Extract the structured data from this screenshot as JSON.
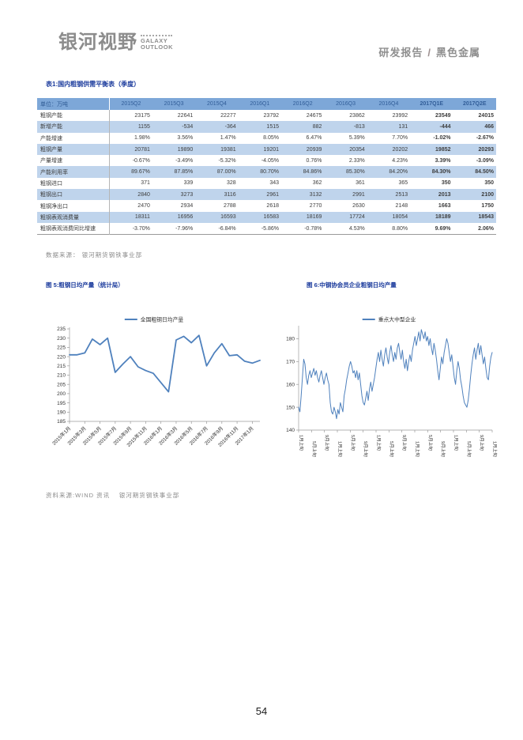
{
  "header": {
    "logo_cn": "银河视野",
    "logo_en_line1": "GALAXY",
    "logo_en_line2": "OUTLOOK",
    "report_type": "研发报告",
    "separator": "/",
    "category": "黑色金属"
  },
  "table": {
    "title": "表1:国内粗钢供需平衡表（季度）",
    "unit_header": "单位：万吨",
    "columns": [
      "2015Q2",
      "2015Q3",
      "2015Q4",
      "2016Q1",
      "2016Q2",
      "2016Q3",
      "2016Q4",
      "2017Q1E",
      "2017Q2E"
    ],
    "bold_column_count": 2,
    "rows": [
      {
        "label": "粗钢产能",
        "values": [
          "23175",
          "22641",
          "22277",
          "23792",
          "24675",
          "23862",
          "23992",
          "23549",
          "24015"
        ]
      },
      {
        "label": "新增产能",
        "values": [
          "1155",
          "-534",
          "-364",
          "1515",
          "882",
          "-813",
          "131",
          "-444",
          "466"
        ]
      },
      {
        "label": "产能增速",
        "values": [
          "1.98%",
          "3.56%",
          "1.47%",
          "8.05%",
          "6.47%",
          "5.39%",
          "7.70%",
          "-1.02%",
          "-2.67%"
        ]
      },
      {
        "label": "粗钢产量",
        "values": [
          "20781",
          "19890",
          "19381",
          "19201",
          "20939",
          "20354",
          "20202",
          "19852",
          "20293"
        ]
      },
      {
        "label": "产量增速",
        "values": [
          "-0.67%",
          "-3.49%",
          "-5.32%",
          "-4.05%",
          "0.76%",
          "2.33%",
          "4.23%",
          "3.39%",
          "-3.09%"
        ]
      },
      {
        "label": "产能利用率",
        "values": [
          "89.67%",
          "87.85%",
          "87.00%",
          "80.70%",
          "84.86%",
          "85.30%",
          "84.20%",
          "84.30%",
          "84.50%"
        ]
      },
      {
        "label": "粗钢进口",
        "values": [
          "371",
          "339",
          "328",
          "343",
          "362",
          "361",
          "365",
          "350",
          "350"
        ]
      },
      {
        "label": "粗钢出口",
        "values": [
          "2840",
          "3273",
          "3116",
          "2961",
          "3132",
          "2991",
          "2513",
          "2013",
          "2100"
        ]
      },
      {
        "label": "粗钢净出口",
        "values": [
          "2470",
          "2934",
          "2788",
          "2618",
          "2770",
          "2630",
          "2148",
          "1663",
          "1750"
        ]
      },
      {
        "label": "粗钢表观消费量",
        "values": [
          "18311",
          "16956",
          "16593",
          "16583",
          "18169",
          "17724",
          "18054",
          "18189",
          "18543"
        ]
      },
      {
        "label": "粗钢表观消费同比增速",
        "values": [
          "-3.70%",
          "-7.96%",
          "-6.84%",
          "-5.86%",
          "-0.78%",
          "4.53%",
          "8.80%",
          "9.69%",
          "2.06%"
        ]
      }
    ],
    "source": "数据来源： 银河期货钢铁事业部"
  },
  "figures": {
    "fig5_title": "图 5:粗钢日均产量（统计局）",
    "fig6_title": "图 6:中钢协会员企业粗钢日均产量",
    "source": "资料来源:WIND 资讯　 银河期货钢铁事业部"
  },
  "chart_data": [
    {
      "type": "line",
      "title": "粗钢日均产量（统计局）",
      "legend": "全国粗钢日均产量",
      "legend_position": "top",
      "grid": false,
      "line_color": "#4f81bd",
      "line_width": 1.8,
      "ylim": [
        185,
        235
      ],
      "y_ticks": [
        185,
        190,
        195,
        200,
        205,
        210,
        215,
        220,
        225,
        230,
        235
      ],
      "x_ticks": [
        "2015年1月",
        "2015年3月",
        "2015年5月",
        "2015年7月",
        "2015年9月",
        "2015年11月",
        "2016年1月",
        "2016年3月",
        "2016年5月",
        "2016年7月",
        "2016年9月",
        "2016年11月",
        "2017年1月"
      ],
      "x_tick_step": 2,
      "x_label_rotation": 45,
      "x_note": "monthly points 2015-01 through 2017-02, values in 万吨/日 (approx, read from plot)",
      "values": [
        221,
        221,
        222,
        229.5,
        226.5,
        230,
        211.5,
        216,
        220,
        214.5,
        212.5,
        211,
        206,
        201,
        229,
        231,
        227.5,
        231.5,
        215,
        222,
        227,
        220.5,
        221,
        217.5,
        216.5,
        218
      ]
    },
    {
      "type": "line",
      "title": "中钢协会员企业粗钢日均产量",
      "legend": "重点大中型企业",
      "legend_position": "top",
      "grid": false,
      "line_color": "#4f81bd",
      "line_width": 1,
      "ylim": [
        140,
        185
      ],
      "y_ticks": [
        140,
        150,
        160,
        170,
        180
      ],
      "x_ticks": [
        "1月上旬",
        "5月上旬",
        "9月上旬",
        "1月上旬",
        "5月上旬",
        "9月上旬",
        "1月上旬",
        "5月上旬",
        "9月上旬",
        "1月上旬",
        "5月上旬",
        "9月上旬",
        "1月上旬",
        "5月上旬",
        "9月上旬",
        "1月上旬"
      ],
      "x_label_rotation": 90,
      "x_note": "ten-day-period (旬) series, values approx, read from plot",
      "values": [
        150,
        148,
        155,
        163,
        171,
        169,
        163,
        160,
        164,
        166,
        163,
        165,
        167,
        164,
        166,
        163,
        161,
        164,
        166,
        163,
        160,
        163,
        165,
        162,
        160,
        152,
        148,
        147,
        150,
        148,
        145,
        149,
        147,
        152,
        150,
        148,
        155,
        158,
        162,
        165,
        168,
        170,
        168,
        165,
        166,
        163,
        166,
        162,
        165,
        160,
        155,
        152,
        151,
        154,
        157,
        153,
        158,
        161,
        157,
        160,
        163,
        167,
        171,
        174,
        170,
        175,
        171,
        168,
        173,
        176,
        172,
        169,
        174,
        177,
        173,
        170,
        174,
        171,
        176,
        178,
        174,
        171,
        175,
        170,
        167,
        171,
        166,
        170,
        173,
        170,
        175,
        178,
        181,
        177,
        180,
        183,
        179,
        184,
        182,
        180,
        183,
        179,
        181,
        177,
        180,
        176,
        173,
        178,
        175,
        171,
        166,
        162,
        167,
        172,
        169,
        174,
        177,
        180,
        178,
        174,
        170,
        173,
        168,
        163,
        160,
        166,
        170,
        167,
        162,
        159,
        155,
        152,
        151,
        150,
        153,
        158,
        164,
        169,
        173,
        176,
        171,
        175,
        178,
        173,
        177,
        173,
        169,
        172,
        167,
        163,
        162,
        168,
        172,
        174
      ]
    }
  ],
  "footer": {
    "page_number": "54"
  },
  "colors": {
    "title_blue": "#1a3a9c",
    "table_header_bg": "#7da7d8",
    "table_stripe": "#bfd4ec",
    "chart_line": "#4f81bd",
    "muted_gray": "#8a8a8a"
  }
}
